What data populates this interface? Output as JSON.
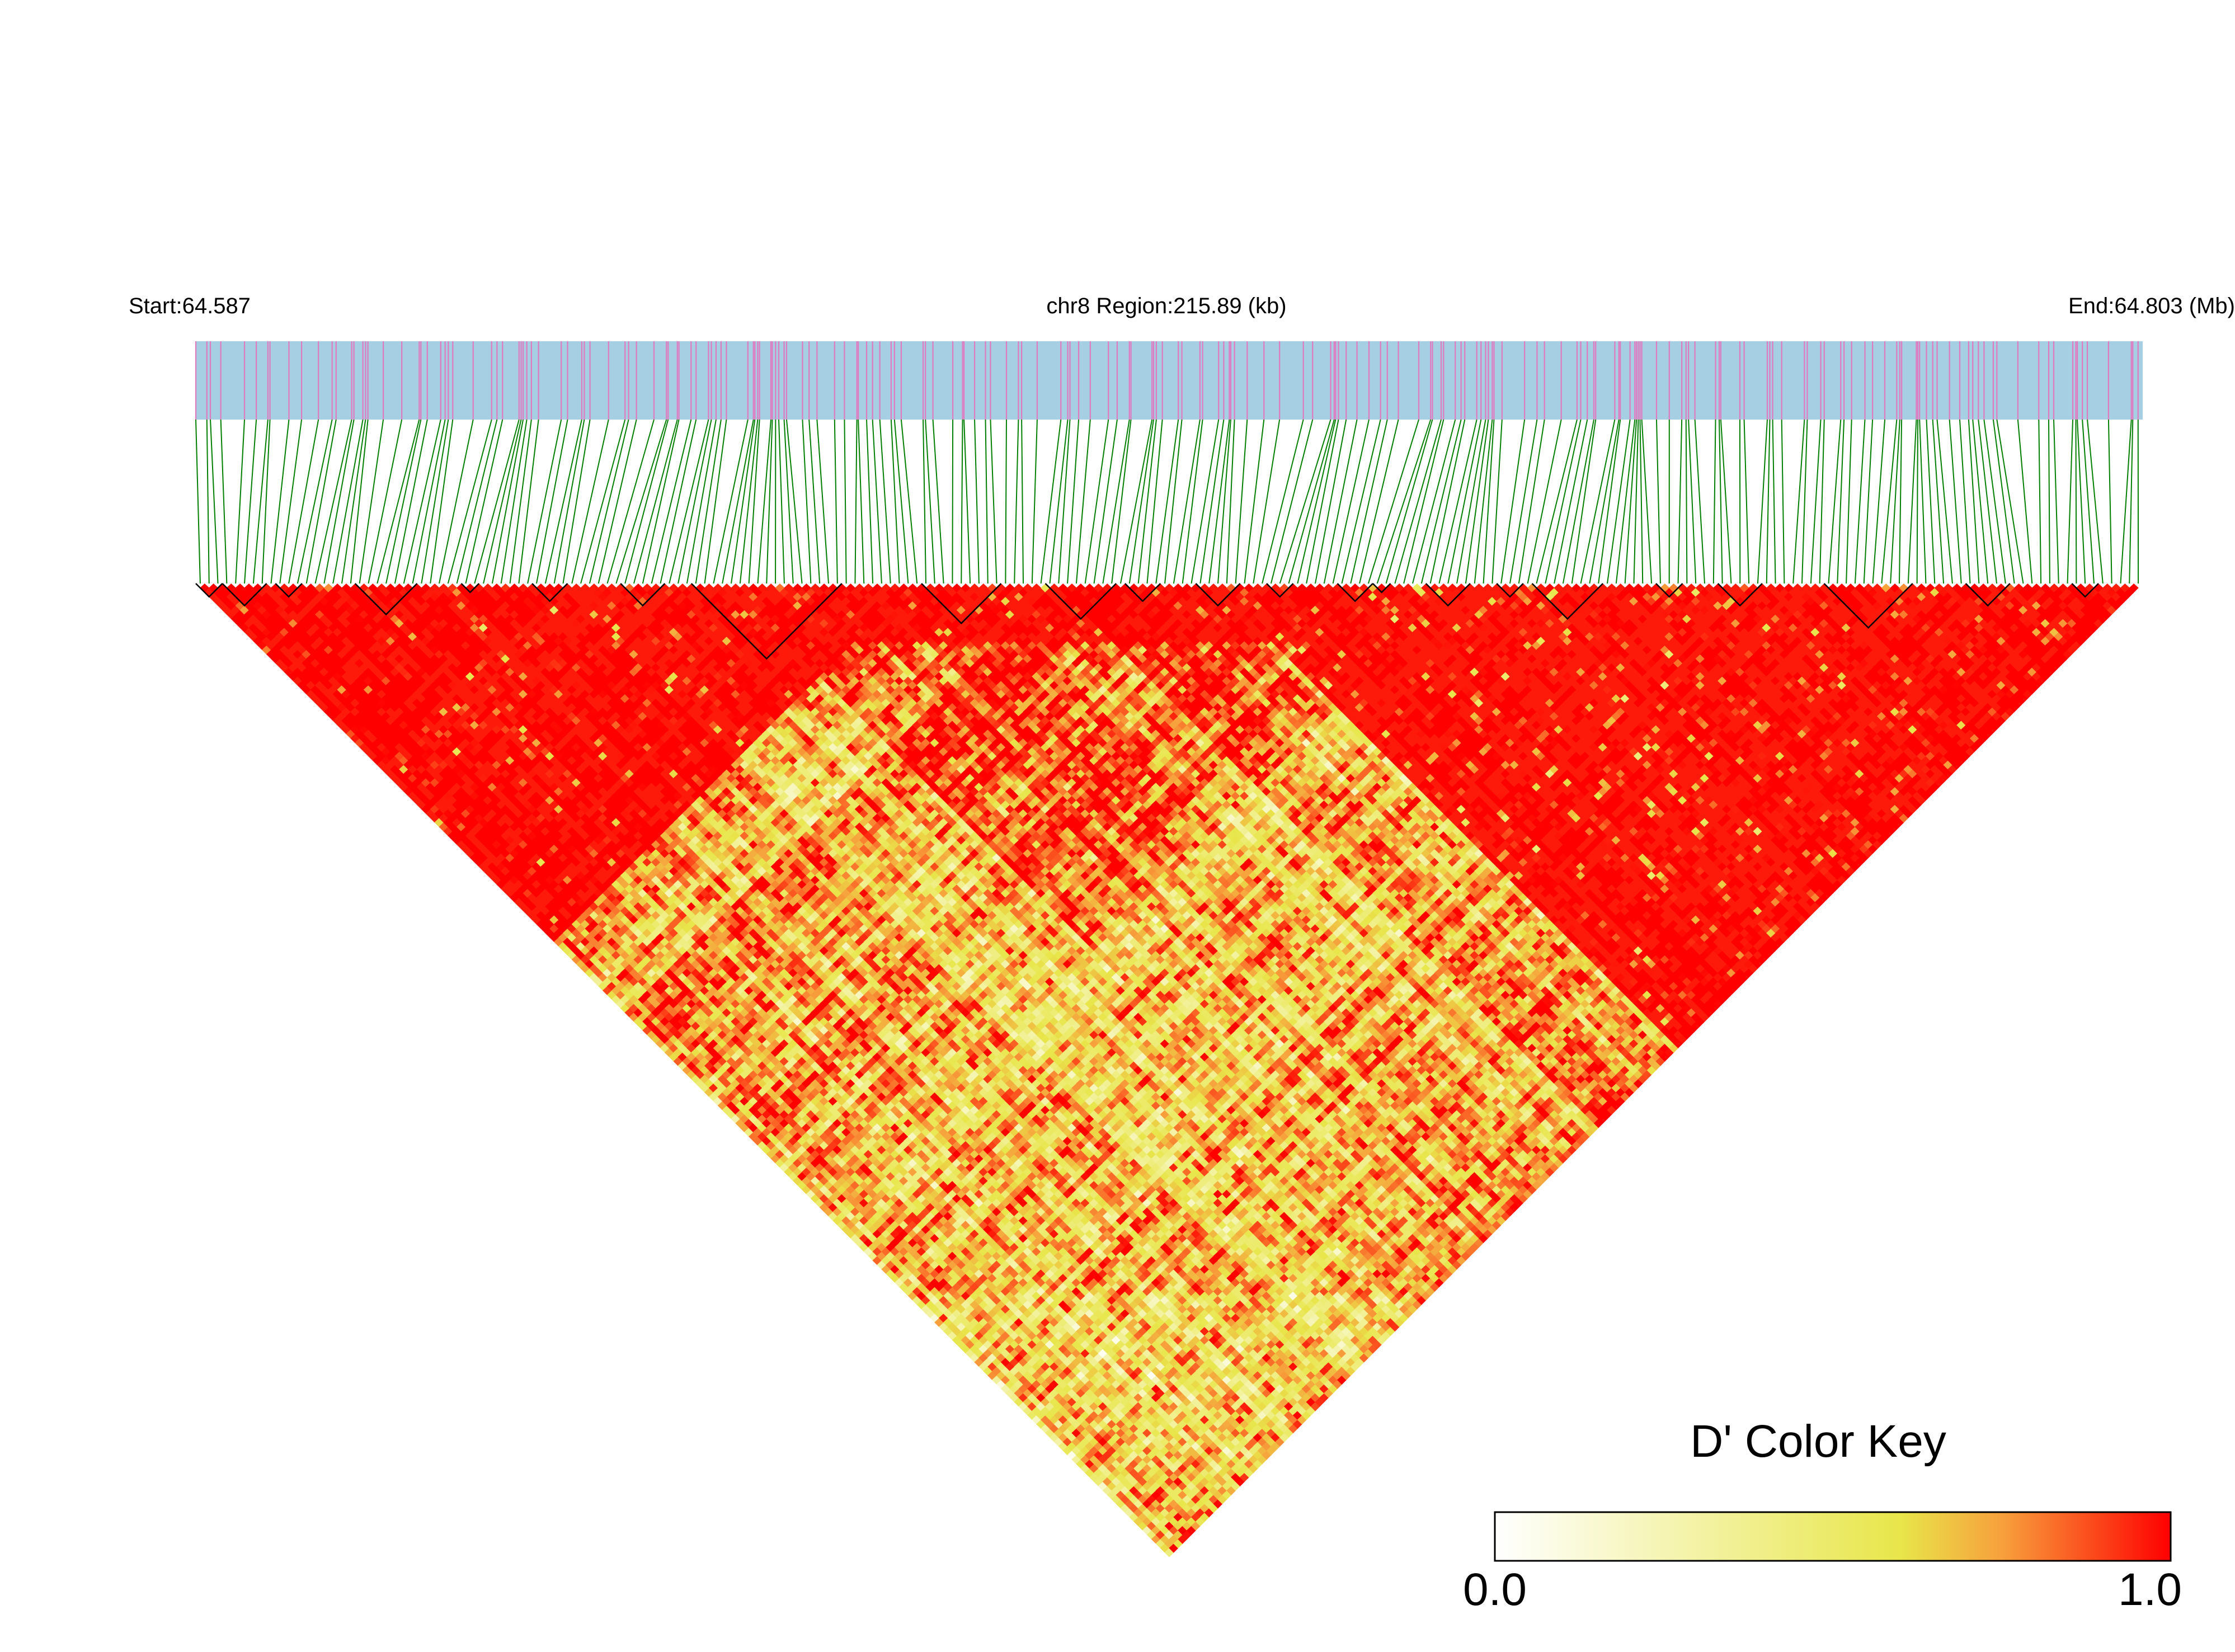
{
  "chart_data": {
    "type": "heatmap",
    "subtype": "linkage-disequilibrium-triangle",
    "chromosome": "chr8",
    "start_label": "Start:64.587",
    "region_label": "chr8 Region:215.89 (kb)",
    "end_label": "End:64.803 (Mb)",
    "region_start_mb": 64.587,
    "region_end_mb": 64.803,
    "region_length_kb": 215.89,
    "snp_count_approx": 220,
    "metric": "D'",
    "color_key": {
      "title": "D' Color Key",
      "min_label": "0.0",
      "max_label": "1.0",
      "range": [
        0.0,
        1.0
      ],
      "colors": [
        "#ffffff",
        "#e8e64a",
        "#f7a03c",
        "#ff0000"
      ]
    },
    "haplotype_blocks_snp_ranges": [
      [
        0,
        2
      ],
      [
        3,
        7
      ],
      [
        9,
        11
      ],
      [
        18,
        24
      ],
      [
        30,
        31
      ],
      [
        38,
        41
      ],
      [
        48,
        52
      ],
      [
        56,
        72
      ],
      [
        82,
        90
      ],
      [
        96,
        103
      ],
      [
        105,
        108
      ],
      [
        113,
        117
      ],
      [
        121,
        123
      ],
      [
        129,
        132
      ],
      [
        133,
        134
      ],
      [
        139,
        143
      ],
      [
        147,
        149
      ],
      [
        151,
        158
      ],
      [
        165,
        167
      ],
      [
        172,
        176
      ],
      [
        184,
        193
      ],
      [
        200,
        204
      ],
      [
        212,
        214
      ]
    ],
    "ld_regions_dprime": [
      {
        "i": [
          0,
          80
        ],
        "j": [
          0,
          80
        ],
        "dprime": 0.97
      },
      {
        "i": [
          115,
          219
        ],
        "j": [
          115,
          219
        ],
        "dprime": 0.95
      },
      {
        "i": [
          60,
          140
        ],
        "j": [
          60,
          140
        ],
        "dprime": 0.85
      },
      {
        "i": [
          85,
          130
        ],
        "j": [
          150,
          219
        ],
        "dprime": 0.7
      },
      {
        "i": [
          0,
          60
        ],
        "j": [
          100,
          160
        ],
        "dprime": 0.65
      }
    ],
    "colors": {
      "snp_track": "#a6cfe3",
      "snp_tick": "#e07ac0",
      "position_lines": "#007f00",
      "block_outline": "#000000"
    }
  }
}
